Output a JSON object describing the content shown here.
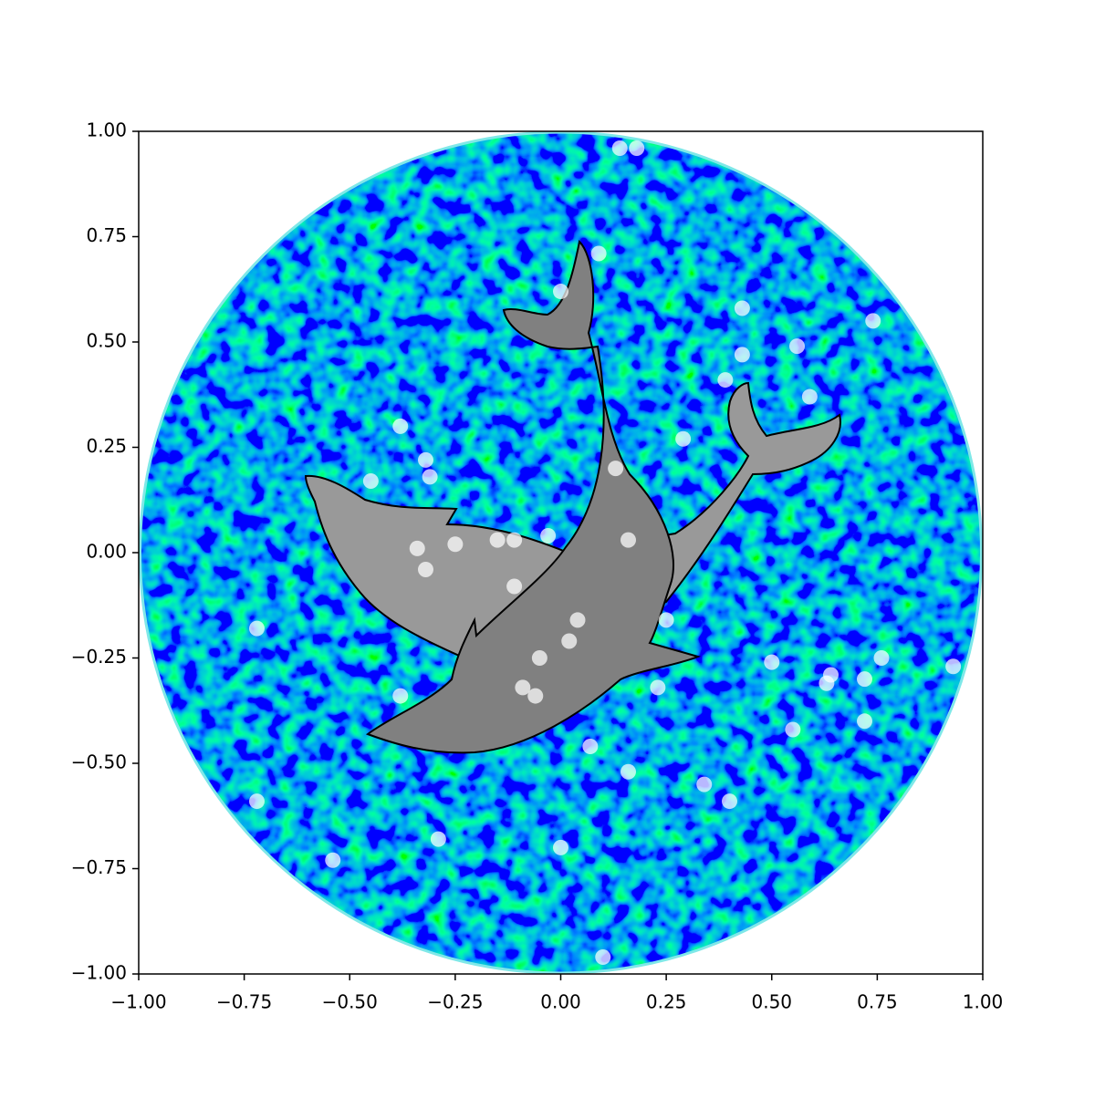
{
  "chart_data": {
    "type": "scatter",
    "x": [
      0.14,
      0.18,
      0.09,
      0.0,
      0.43,
      0.74,
      0.56,
      0.43,
      0.39,
      0.59,
      -0.38,
      0.29,
      -0.32,
      -0.31,
      0.13,
      -0.45,
      -0.03,
      0.16,
      -0.11,
      -0.15,
      -0.25,
      -0.34,
      -0.32,
      -0.11,
      0.04,
      0.25,
      -0.72,
      0.02,
      -0.05,
      0.5,
      0.76,
      0.93,
      0.64,
      0.63,
      0.72,
      0.23,
      -0.09,
      -0.06,
      -0.38,
      0.72,
      0.55,
      0.07,
      0.16,
      0.34,
      0.4,
      -0.72,
      -0.29,
      0.0,
      -0.54,
      0.1
    ],
    "y": [
      0.96,
      0.96,
      0.71,
      0.62,
      0.58,
      0.55,
      0.49,
      0.47,
      0.41,
      0.37,
      0.3,
      0.27,
      0.22,
      0.18,
      0.2,
      0.17,
      0.04,
      0.03,
      0.03,
      0.03,
      0.02,
      0.01,
      -0.04,
      -0.08,
      -0.16,
      -0.16,
      -0.18,
      -0.21,
      -0.25,
      -0.26,
      -0.25,
      -0.27,
      -0.29,
      -0.31,
      -0.3,
      -0.32,
      -0.32,
      -0.34,
      -0.34,
      -0.4,
      -0.42,
      -0.46,
      -0.52,
      -0.55,
      -0.59,
      -0.59,
      -0.68,
      -0.7,
      -0.73,
      -0.96
    ],
    "color": "#ffffff",
    "xlim": [
      -1,
      1
    ],
    "ylim": [
      -1,
      1
    ],
    "xticks": [
      {
        "value": -1,
        "label": "−1.00"
      },
      {
        "value": -0.75,
        "label": "−0.75"
      },
      {
        "value": -0.5,
        "label": "−0.50"
      },
      {
        "value": -0.25,
        "label": "−0.25"
      },
      {
        "value": 0,
        "label": "0.00"
      },
      {
        "value": 0.25,
        "label": "0.25"
      },
      {
        "value": 0.5,
        "label": "0.50"
      },
      {
        "value": 0.75,
        "label": "0.75"
      },
      {
        "value": 1,
        "label": "1.00"
      }
    ],
    "yticks": [
      {
        "value": -1,
        "label": "−1.00"
      },
      {
        "value": -0.75,
        "label": "−0.75"
      },
      {
        "value": -0.5,
        "label": "−0.50"
      },
      {
        "value": -0.25,
        "label": "−0.25"
      },
      {
        "value": 0,
        "label": "0.00"
      },
      {
        "value": 0.25,
        "label": "0.25"
      },
      {
        "value": 0.5,
        "label": "0.50"
      },
      {
        "value": 0.75,
        "label": "0.75"
      },
      {
        "value": 1,
        "label": "1.00"
      }
    ]
  }
}
